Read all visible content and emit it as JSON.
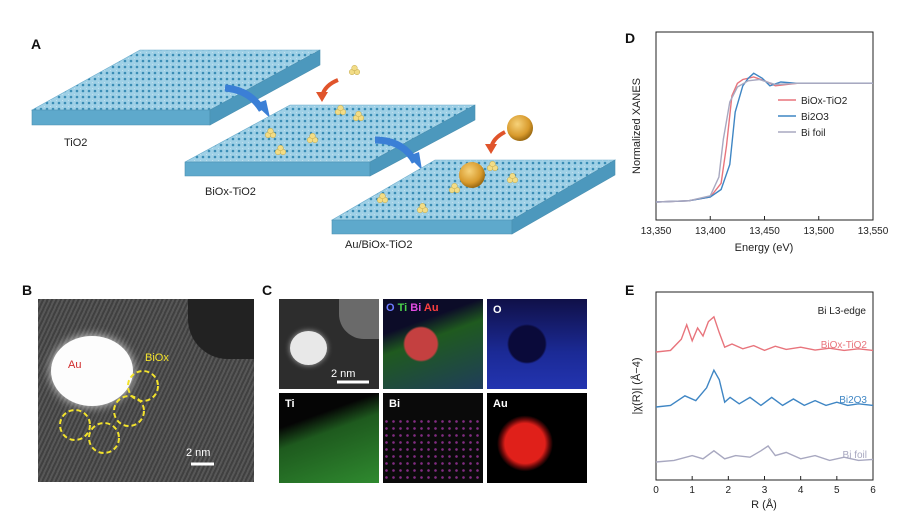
{
  "figure": {
    "panels": {
      "A": {
        "letter": "A",
        "labels": {
          "tio2": "TiO2",
          "biox_tio2": "BiOx-TiO2",
          "au_biox_tio2": "Au/BiOx-TiO2"
        }
      },
      "B": {
        "letter": "B",
        "labels": {
          "au": "Au",
          "biox": "BiOx",
          "scale": "2 nm"
        }
      },
      "C": {
        "letter": "C",
        "tiles": {
          "overlay": [
            "O",
            "Ti",
            "Bi",
            "Au"
          ],
          "o": "O",
          "ti": "Ti",
          "bi": "Bi",
          "au": "Au",
          "scale": "2 nm"
        }
      },
      "D": {
        "letter": "D",
        "chart_data": {
          "type": "line",
          "xlabel": "Energy (eV)",
          "ylabel": "Normalized XANES",
          "xlim": [
            13350,
            13550
          ],
          "xticks": [
            "13,350",
            "13,400",
            "13,450",
            "13,500",
            "13,550"
          ],
          "legend_position": "right",
          "series": [
            {
              "name": "BiOx-TiO2",
              "color": "#e8747c",
              "x": [
                13350,
                13380,
                13400,
                13410,
                13415,
                13420,
                13425,
                13430,
                13440,
                13450,
                13460,
                13480,
                13500,
                13550
              ],
              "y": [
                0.0,
                0.01,
                0.04,
                0.15,
                0.45,
                0.85,
                0.95,
                0.98,
                1.0,
                0.97,
                0.93,
                0.95,
                0.95,
                0.95
              ]
            },
            {
              "name": "Bi2O3",
              "color": "#3f86c4",
              "x": [
                13350,
                13380,
                13400,
                13410,
                13418,
                13423,
                13430,
                13435,
                13440,
                13448,
                13455,
                13465,
                13480,
                13500,
                13550
              ],
              "y": [
                0.0,
                0.01,
                0.04,
                0.1,
                0.3,
                0.72,
                0.93,
                0.99,
                1.03,
                0.99,
                0.93,
                0.96,
                0.95,
                0.95,
                0.95
              ]
            },
            {
              "name": "Bi foil",
              "color": "#a8a8c0",
              "x": [
                13350,
                13380,
                13400,
                13408,
                13412,
                13418,
                13425,
                13435,
                13445,
                13460,
                13480,
                13500,
                13550
              ],
              "y": [
                0.0,
                0.01,
                0.05,
                0.2,
                0.5,
                0.8,
                0.92,
                0.97,
                0.98,
                0.94,
                0.95,
                0.95,
                0.95
              ]
            }
          ]
        }
      },
      "E": {
        "letter": "E",
        "chart_data": {
          "type": "line",
          "title": "Bi L3-edge",
          "xlabel": "R (Å)",
          "ylabel": "|χ(R)| (Å−4)",
          "xlim": [
            0,
            6
          ],
          "xticks": [
            "0",
            "1",
            "2",
            "3",
            "4",
            "5",
            "6"
          ],
          "series": [
            {
              "name": "BiOx-TiO2",
              "color": "#e8747c",
              "x": [
                0,
                0.4,
                0.7,
                0.85,
                1.0,
                1.15,
                1.3,
                1.45,
                1.6,
                1.75,
                1.9,
                2.1,
                2.4,
                2.7,
                3.0,
                3.3,
                3.6,
                4.0,
                4.4,
                4.8,
                5.2,
                5.6,
                6.0
              ],
              "y": [
                0.0,
                0.05,
                0.4,
                0.85,
                0.35,
                0.75,
                0.5,
                0.95,
                1.1,
                0.6,
                0.15,
                0.25,
                0.1,
                0.2,
                0.05,
                0.18,
                0.08,
                0.15,
                0.06,
                0.12,
                0.05,
                0.1,
                0.05
              ]
            },
            {
              "name": "Bi2O3",
              "color": "#3f86c4",
              "x": [
                0,
                0.4,
                0.8,
                1.1,
                1.4,
                1.6,
                1.75,
                1.9,
                2.05,
                2.3,
                2.6,
                2.9,
                3.2,
                3.5,
                3.8,
                4.1,
                4.4,
                4.7,
                5.0,
                5.3,
                5.6,
                6.0
              ],
              "y": [
                0.0,
                0.05,
                0.35,
                0.2,
                0.6,
                1.15,
                0.85,
                0.15,
                0.3,
                0.1,
                0.3,
                0.05,
                0.3,
                0.05,
                0.25,
                0.05,
                0.2,
                0.05,
                0.15,
                0.05,
                0.1,
                0.05
              ]
            },
            {
              "name": "Bi foil",
              "color": "#a8a8c0",
              "x": [
                0,
                0.5,
                1.0,
                1.3,
                1.6,
                1.9,
                2.2,
                2.6,
                2.9,
                3.1,
                3.3,
                3.6,
                4.0,
                4.4,
                4.8,
                5.2,
                5.6,
                6.0
              ],
              "y": [
                0.0,
                0.05,
                0.2,
                0.1,
                0.35,
                0.1,
                0.2,
                0.15,
                0.35,
                0.5,
                0.2,
                0.3,
                0.1,
                0.2,
                0.05,
                0.15,
                0.05,
                0.08
              ]
            }
          ]
        }
      }
    }
  }
}
